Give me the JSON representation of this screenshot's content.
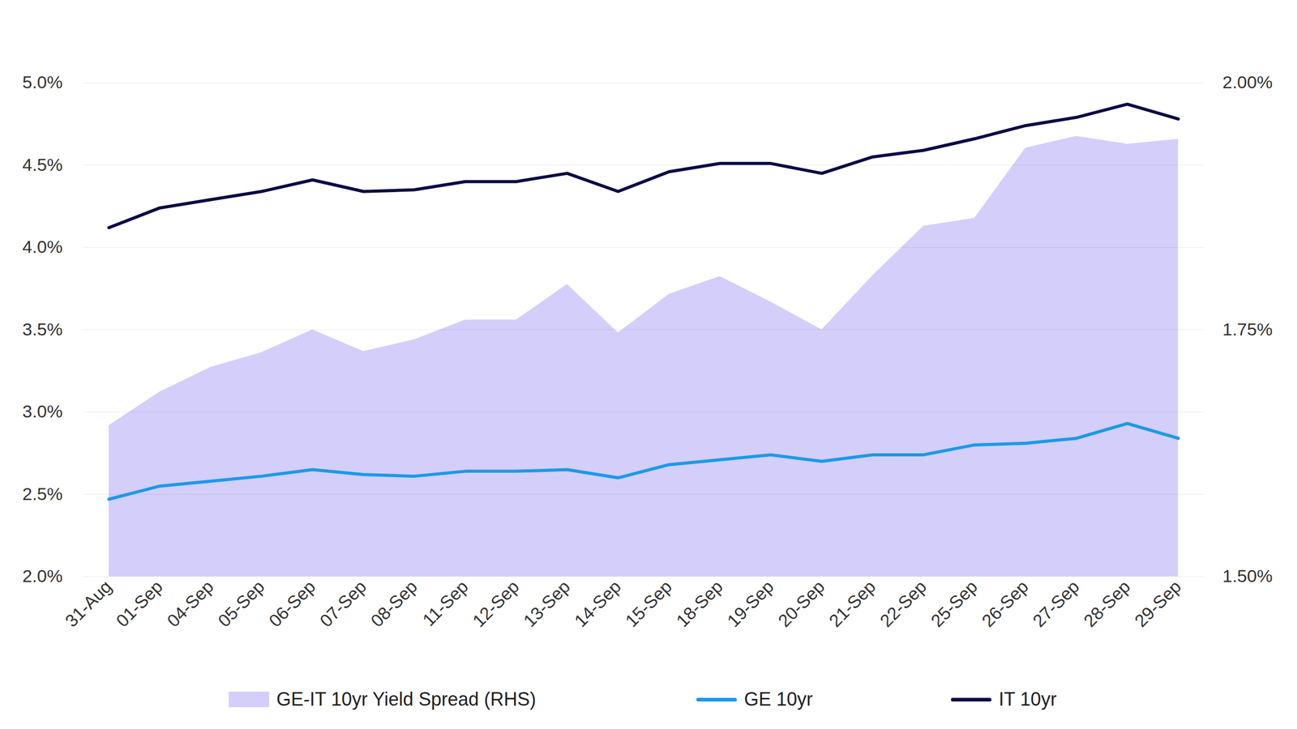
{
  "chart_data": {
    "type": "line",
    "categories": [
      "31-Aug",
      "01-Sep",
      "04-Sep",
      "05-Sep",
      "06-Sep",
      "07-Sep",
      "08-Sep",
      "11-Sep",
      "12-Sep",
      "13-Sep",
      "14-Sep",
      "15-Sep",
      "18-Sep",
      "19-Sep",
      "20-Sep",
      "21-Sep",
      "22-Sep",
      "25-Sep",
      "26-Sep",
      "27-Sep",
      "28-Sep",
      "29-Sep"
    ],
    "series": [
      {
        "name": "GE-IT 10yr Yield Spread (RHS)",
        "type": "area",
        "axis": "y2",
        "color": "#d4cefa",
        "values": [
          1.653,
          1.687,
          1.712,
          1.727,
          1.75,
          1.728,
          1.74,
          1.76,
          1.76,
          1.796,
          1.747,
          1.786,
          1.804,
          1.778,
          1.75,
          1.805,
          1.855,
          1.863,
          1.934,
          1.946,
          1.938,
          1.943
        ]
      },
      {
        "name": "GE 10yr",
        "type": "line",
        "color": "#1a9ae8",
        "values": [
          2.47,
          2.55,
          2.58,
          2.61,
          2.65,
          2.62,
          2.61,
          2.64,
          2.64,
          2.65,
          2.6,
          2.68,
          2.71,
          2.74,
          2.7,
          2.74,
          2.74,
          2.8,
          2.81,
          2.84,
          2.93,
          2.84
        ]
      },
      {
        "name": "IT 10yr",
        "type": "line",
        "color": "#0b0b45",
        "values": [
          4.12,
          4.24,
          4.29,
          4.34,
          4.41,
          4.34,
          4.35,
          4.4,
          4.4,
          4.45,
          4.34,
          4.46,
          4.51,
          4.51,
          4.45,
          4.55,
          4.59,
          4.66,
          4.74,
          4.79,
          4.87,
          4.78
        ]
      }
    ],
    "ylim": [
      2,
      5
    ],
    "yticks": [
      {
        "value": 2,
        "label": "2.0%"
      },
      {
        "value": 2.5,
        "label": "2.5%"
      },
      {
        "value": 3,
        "label": "3.0%"
      },
      {
        "value": 3.5,
        "label": "3.5%"
      },
      {
        "value": 4,
        "label": "4.0%"
      },
      {
        "value": 4.5,
        "label": "4.5%"
      },
      {
        "value": 5,
        "label": "5.0%"
      }
    ],
    "y2lim": [
      1.5,
      2
    ],
    "y2ticks": [
      {
        "value": 1.5,
        "label": "1.50%"
      },
      {
        "value": 1.75,
        "label": "1.75%"
      },
      {
        "value": 2,
        "label": "2.00%"
      }
    ],
    "grid": true,
    "legend": "bottom"
  }
}
